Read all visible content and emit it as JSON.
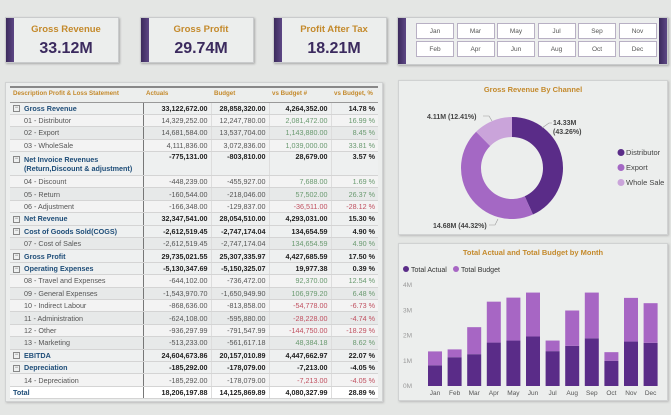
{
  "kpis": [
    {
      "title": "Gross Revenue",
      "value": "33.12M"
    },
    {
      "title": "Gross Profit",
      "value": "29.74M"
    },
    {
      "title": "Profit After Tax",
      "value": "18.21M"
    }
  ],
  "months": [
    "Jan",
    "Feb",
    "Mar",
    "Apr",
    "May",
    "Jun",
    "Jul",
    "Aug",
    "Sep",
    "Oct",
    "Nov",
    "Dec"
  ],
  "table": {
    "headers": [
      "Description Profit & Loss Statement",
      "Actuals",
      "Budget",
      "vs Budget #",
      "vs Budget, %"
    ],
    "rows": [
      {
        "type": "group",
        "label": "Gross Revenue",
        "actual": "33,122,672.00",
        "budget": "28,858,320.00",
        "vs_num": "4,264,352.00",
        "vs_pct": "14.78 %"
      },
      {
        "type": "child",
        "label": "01 - Distributor",
        "actual": "14,329,252.00",
        "budget": "12,247,780.00",
        "vs_num": "2,081,472.00",
        "vs_pct": "16.99 %",
        "sentiment": "pos"
      },
      {
        "type": "child",
        "label": "02 - Export",
        "actual": "14,681,584.00",
        "budget": "13,537,704.00",
        "vs_num": "1,143,880.00",
        "vs_pct": "8.45 %",
        "sentiment": "pos"
      },
      {
        "type": "child",
        "label": "03 - WholeSale",
        "actual": "4,111,836.00",
        "budget": "3,072,836.00",
        "vs_num": "1,039,000.00",
        "vs_pct": "33.81 %",
        "sentiment": "pos"
      },
      {
        "type": "group",
        "label": "Net Invoice Revenues",
        "label2": "(Return,Discount & adjustment)",
        "actual": "-775,131.00",
        "budget": "-803,810.00",
        "vs_num": "28,679.00",
        "vs_pct": "3.57 %"
      },
      {
        "type": "child",
        "label": "04 - Discount",
        "actual": "-448,239.00",
        "budget": "-455,927.00",
        "vs_num": "7,688.00",
        "vs_pct": "1.69 %",
        "sentiment": "pos"
      },
      {
        "type": "child",
        "label": "05 - Return",
        "actual": "-160,544.00",
        "budget": "-218,046.00",
        "vs_num": "57,502.00",
        "vs_pct": "26.37 %",
        "sentiment": "pos"
      },
      {
        "type": "child",
        "label": "06 - Adjustment",
        "actual": "-166,348.00",
        "budget": "-129,837.00",
        "vs_num": "-36,511.00",
        "vs_pct": "-28.12 %",
        "sentiment": "neg"
      },
      {
        "type": "group",
        "label": "Net Revenue",
        "actual": "32,347,541.00",
        "budget": "28,054,510.00",
        "vs_num": "4,293,031.00",
        "vs_pct": "15.30 %"
      },
      {
        "type": "group",
        "label": "Cost of Goods Sold(COGS)",
        "actual": "-2,612,519.45",
        "budget": "-2,747,174.04",
        "vs_num": "134,654.59",
        "vs_pct": "4.90 %"
      },
      {
        "type": "child",
        "label": "07 - Cost of Sales",
        "actual": "-2,612,519.45",
        "budget": "-2,747,174.04",
        "vs_num": "134,654.59",
        "vs_pct": "4.90 %",
        "sentiment": "pos"
      },
      {
        "type": "group",
        "label": "Gross Profit",
        "actual": "29,735,021.55",
        "budget": "25,307,335.97",
        "vs_num": "4,427,685.59",
        "vs_pct": "17.50 %"
      },
      {
        "type": "group",
        "label": "Operating Expenses",
        "actual": "-5,130,347.69",
        "budget": "-5,150,325.07",
        "vs_num": "19,977.38",
        "vs_pct": "0.39 %"
      },
      {
        "type": "child",
        "label": "08 - Travel and Expenses",
        "actual": "-644,102.00",
        "budget": "-736,472.00",
        "vs_num": "92,370.00",
        "vs_pct": "12.54 %",
        "sentiment": "pos"
      },
      {
        "type": "child",
        "label": "09 - General Expenses",
        "actual": "-1,543,970.70",
        "budget": "-1,650,949.90",
        "vs_num": "106,979.20",
        "vs_pct": "6.48 %",
        "sentiment": "pos"
      },
      {
        "type": "child",
        "label": "10 - Indirect Labour",
        "actual": "-868,636.00",
        "budget": "-813,858.00",
        "vs_num": "-54,778.00",
        "vs_pct": "-6.73 %",
        "sentiment": "neg"
      },
      {
        "type": "child",
        "label": "11 - Administration",
        "actual": "-624,108.00",
        "budget": "-595,880.00",
        "vs_num": "-28,228.00",
        "vs_pct": "-4.74 %",
        "sentiment": "neg"
      },
      {
        "type": "child",
        "label": "12 - Other",
        "actual": "-936,297.99",
        "budget": "-791,547.99",
        "vs_num": "-144,750.00",
        "vs_pct": "-18.29 %",
        "sentiment": "neg"
      },
      {
        "type": "child",
        "label": "13 - Marketing",
        "actual": "-513,233.00",
        "budget": "-561,617.18",
        "vs_num": "48,384.18",
        "vs_pct": "8.62 %",
        "sentiment": "pos"
      },
      {
        "type": "group",
        "label": "EBITDA",
        "actual": "24,604,673.86",
        "budget": "20,157,010.89",
        "vs_num": "4,447,662.97",
        "vs_pct": "22.07 %"
      },
      {
        "type": "group",
        "label": "Depreciation",
        "actual": "-185,292.00",
        "budget": "-178,079.00",
        "vs_num": "-7,213.00",
        "vs_pct": "-4.05 %"
      },
      {
        "type": "child",
        "label": "14 - Depreciation",
        "actual": "-185,292.00",
        "budget": "-178,079.00",
        "vs_num": "-7,213.00",
        "vs_pct": "-4.05 %",
        "sentiment": "neg"
      },
      {
        "type": "total",
        "label": "Total",
        "actual": "18,206,197.88",
        "budget": "14,125,869.89",
        "vs_num": "4,080,327.99",
        "vs_pct": "28.89 %"
      }
    ]
  },
  "chart_data": [
    {
      "type": "pie",
      "title": "Gross Revenue By Channel",
      "donut": true,
      "slices": [
        {
          "name": "Distributor",
          "value": 14.33,
          "label": "14.33M",
          "pct_label": "(43.26%)",
          "color": "#5a2c88"
        },
        {
          "name": "Export",
          "value": 14.68,
          "label": "14.68M (44.32%)",
          "color": "#a468c4"
        },
        {
          "name": "Whole Sale",
          "value": 4.11,
          "label": "4.11M (12.41%)",
          "color": "#caa4da"
        }
      ],
      "legend": "right"
    },
    {
      "type": "bar",
      "stacked": true,
      "title": "Total Actual and Total Budget by Month",
      "legend": "top-left",
      "categories": [
        "Jan",
        "Feb",
        "Mar",
        "Apr",
        "May",
        "Jun",
        "Jul",
        "Aug",
        "Sep",
        "Oct",
        "Nov",
        "Dec"
      ],
      "yticks": [
        "0M",
        "1M",
        "2M",
        "3M",
        "4M"
      ],
      "ylim": [
        0,
        4
      ],
      "yunit": "M",
      "series": [
        {
          "name": "Total Actual",
          "color": "#5a2c88",
          "values": [
            0.82,
            1.14,
            1.26,
            1.72,
            1.8,
            1.96,
            1.38,
            1.59,
            1.89,
            1.0,
            1.76,
            1.71
          ]
        },
        {
          "name": "Total Budget",
          "color": "#a766c4",
          "values": [
            0.55,
            0.31,
            1.07,
            1.62,
            1.7,
            1.74,
            0.42,
            1.4,
            1.81,
            0.34,
            1.73,
            1.57
          ]
        }
      ]
    }
  ]
}
